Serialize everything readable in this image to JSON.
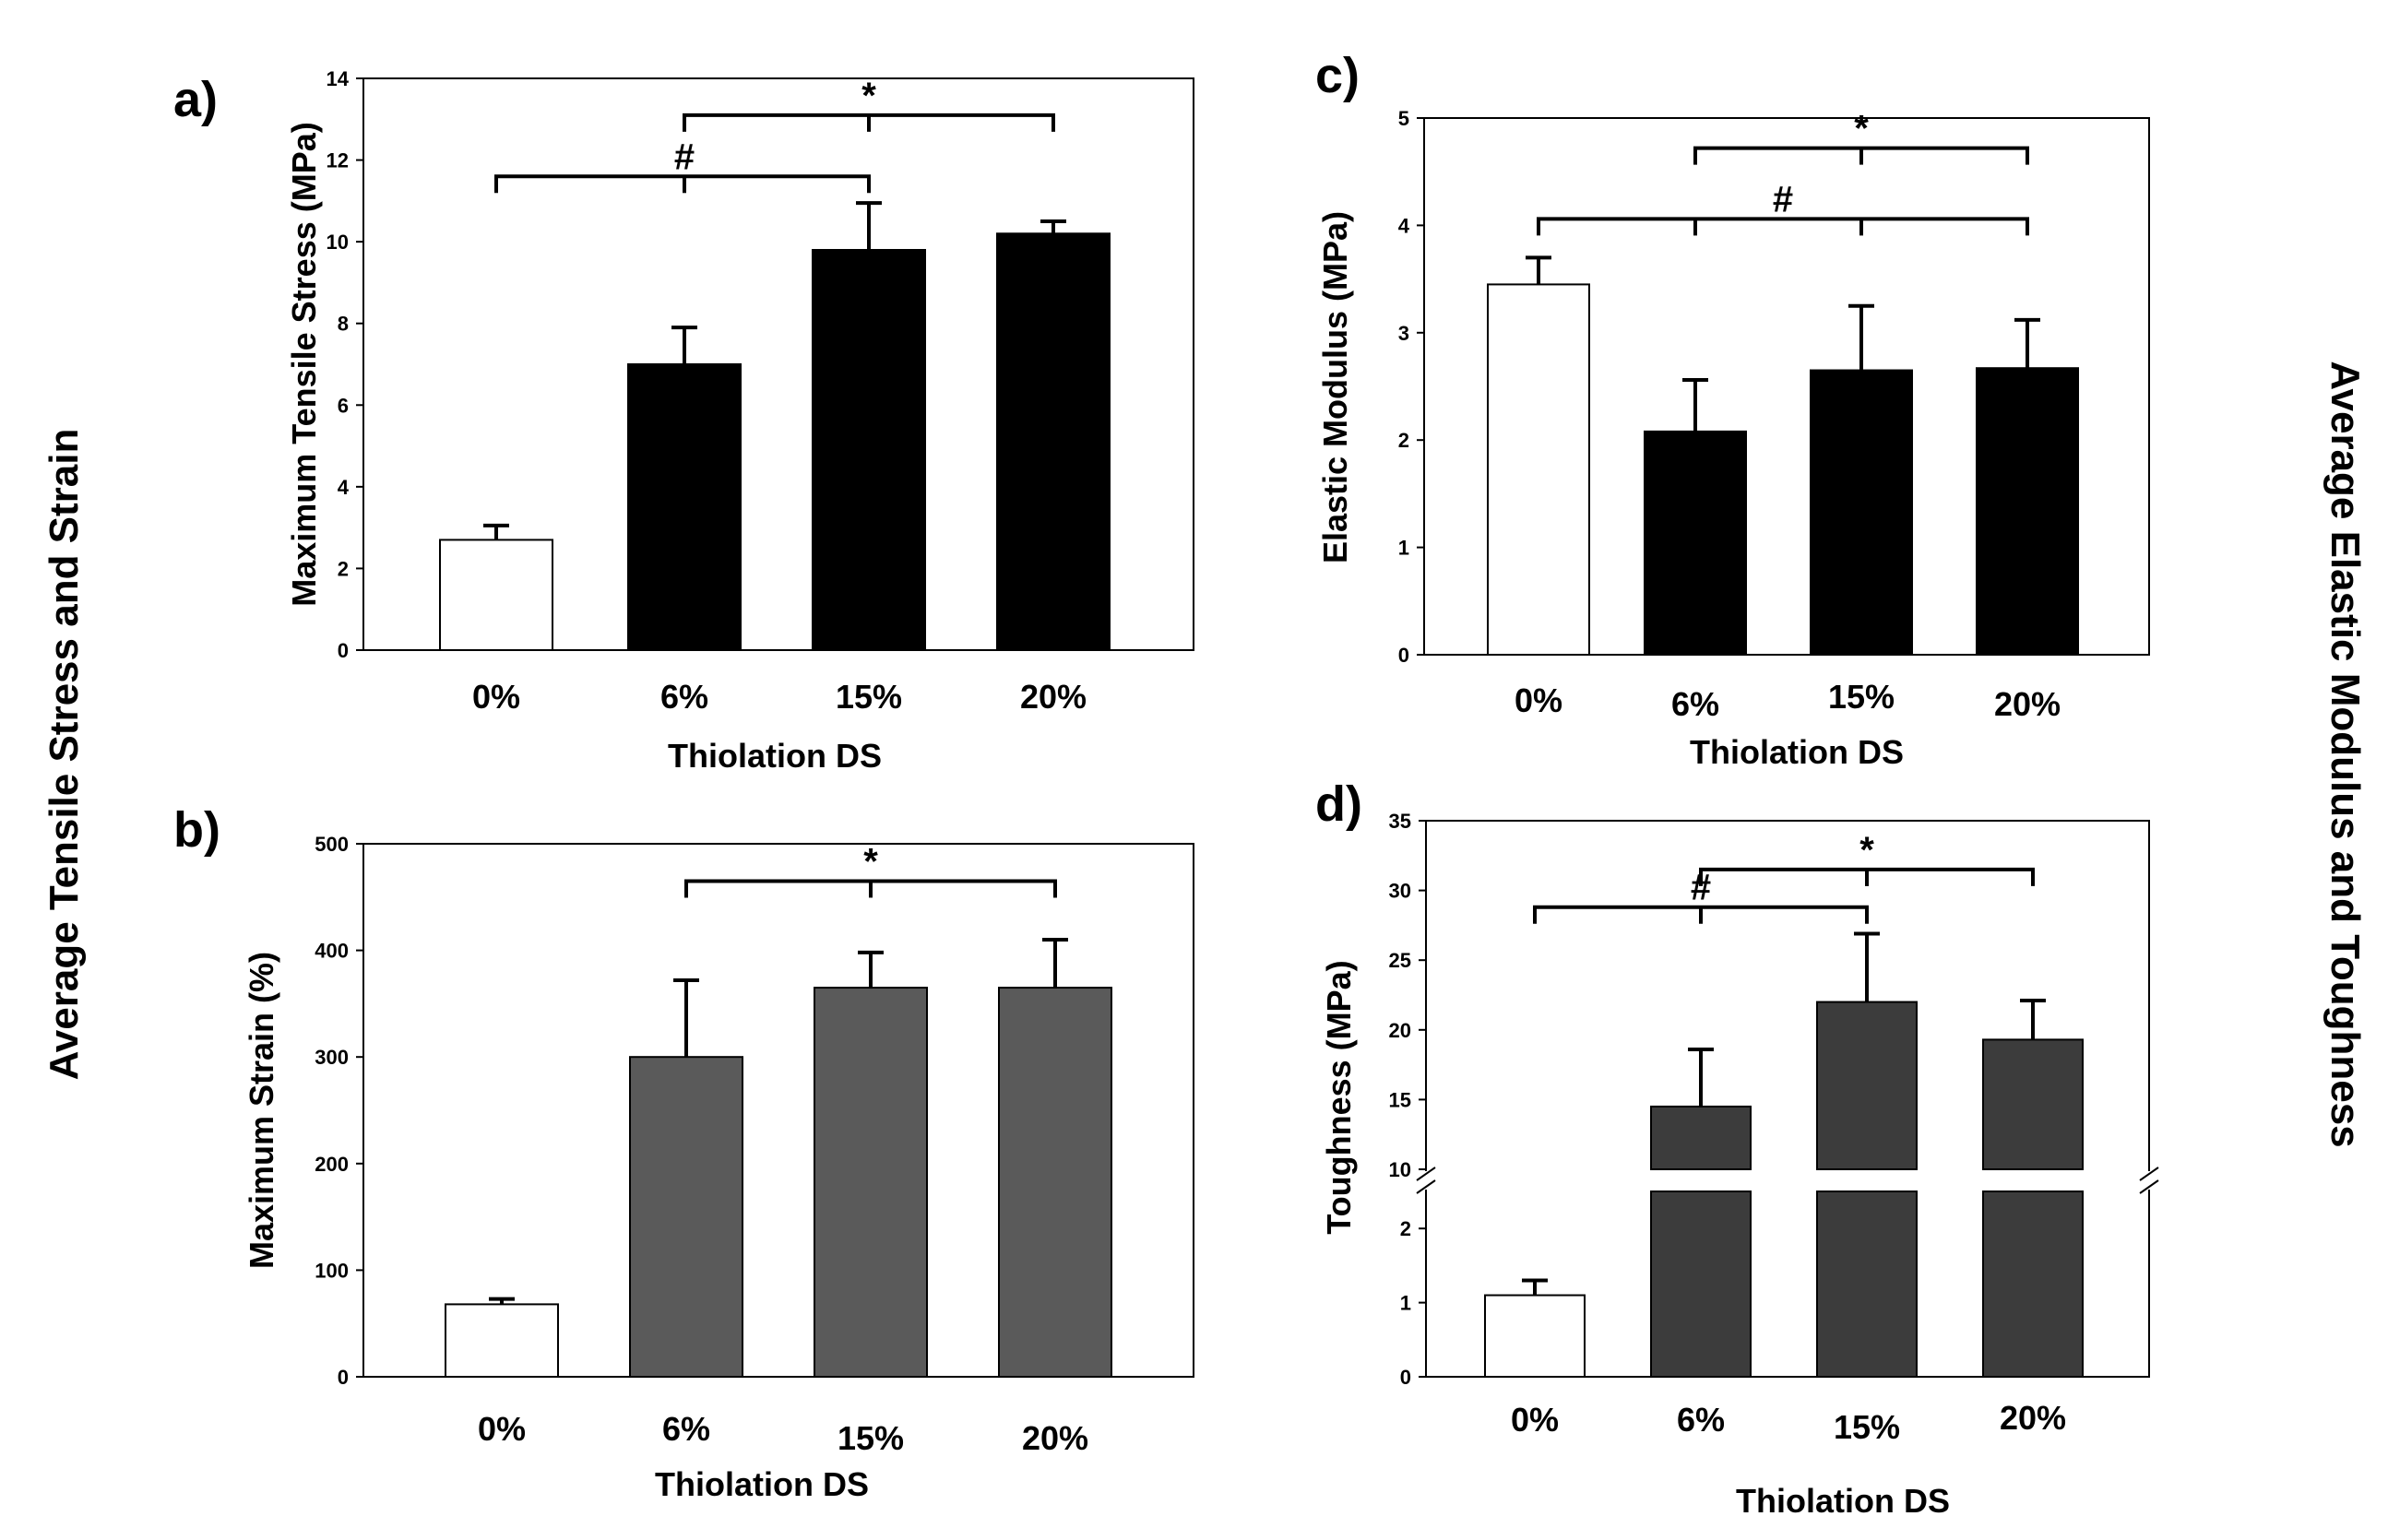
{
  "side_titles": {
    "left": "Average Tensile Stress and Strain",
    "right": "Average Elastic Modulus and Toughness"
  },
  "chart_data": [
    {
      "id": "a",
      "panel_label": "a)",
      "type": "bar",
      "xlabel": "Thiolation DS",
      "ylabel": "Maximum Tensile Stress (MPa)",
      "ylim": [
        0,
        14
      ],
      "yticks": [
        "0",
        "2",
        "4",
        "6",
        "8",
        "10",
        "12",
        "14"
      ],
      "categories": [
        "0%",
        "6%",
        "15%",
        "20%"
      ],
      "values": [
        2.7,
        7.0,
        9.8,
        10.2
      ],
      "errors": [
        0.35,
        0.9,
        1.15,
        0.3
      ],
      "bar_colors": [
        "#ffffff",
        "#000000",
        "#000000",
        "#000000"
      ],
      "significance": [
        {
          "symbol": "#",
          "from": 0,
          "to": 2,
          "level": 11.6
        },
        {
          "symbol": "*",
          "from": 1,
          "to": 3,
          "level": 13.1
        }
      ]
    },
    {
      "id": "b",
      "panel_label": "b)",
      "type": "bar",
      "xlabel": "Thiolation DS",
      "ylabel": "Maximum Strain (%)",
      "ylim": [
        0,
        500
      ],
      "yticks": [
        "0",
        "100",
        "200",
        "300",
        "400",
        "500"
      ],
      "categories": [
        "0%",
        "6%",
        "15%",
        "20%"
      ],
      "values": [
        68,
        300,
        365,
        365
      ],
      "errors": [
        5,
        72,
        33,
        45
      ],
      "bar_colors": [
        "#ffffff",
        "#5a5a5a",
        "#5a5a5a",
        "#5a5a5a"
      ],
      "significance": [
        {
          "symbol": "*",
          "from": 1,
          "to": 3,
          "level": 465
        }
      ]
    },
    {
      "id": "c",
      "panel_label": "c)",
      "type": "bar",
      "xlabel": "Thiolation DS",
      "ylabel": "Elastic Modulus (MPa)",
      "ylim": [
        0,
        5
      ],
      "yticks": [
        "0",
        "1",
        "2",
        "3",
        "4",
        "5"
      ],
      "categories": [
        "0%",
        "6%",
        "15%",
        "20%"
      ],
      "values": [
        3.45,
        2.08,
        2.65,
        2.67
      ],
      "errors": [
        0.25,
        0.48,
        0.6,
        0.45
      ],
      "bar_colors": [
        "#ffffff",
        "#000000",
        "#000000",
        "#000000"
      ],
      "significance": [
        {
          "symbol": "#",
          "from": 0,
          "to": 3,
          "level": 4.06
        },
        {
          "symbol": "*",
          "from": 1,
          "to": 3,
          "level": 4.72
        }
      ]
    },
    {
      "id": "d",
      "panel_label": "d)",
      "type": "bar",
      "xlabel": "Thiolation DS",
      "ylabel": "Toughness (MPa)",
      "broken_axis": true,
      "lower_ylim": [
        0,
        2.5
      ],
      "upper_ylim": [
        10,
        35
      ],
      "lower_yticks": [
        "0",
        "1",
        "2"
      ],
      "upper_yticks": [
        "10",
        "15",
        "20",
        "25",
        "30",
        "35"
      ],
      "categories": [
        "0%",
        "6%",
        "15%",
        "20%"
      ],
      "values": [
        1.1,
        14.5,
        22.0,
        19.3
      ],
      "errors": [
        0.2,
        4.1,
        4.9,
        2.8
      ],
      "bar_colors": [
        "#ffffff",
        "#3c3c3c",
        "#3c3c3c",
        "#3c3c3c"
      ],
      "significance": [
        {
          "symbol": "#",
          "from": 0,
          "to": 2,
          "level": 28.8
        },
        {
          "symbol": "*",
          "from": 1,
          "to": 3,
          "level": 31.5
        }
      ]
    }
  ]
}
